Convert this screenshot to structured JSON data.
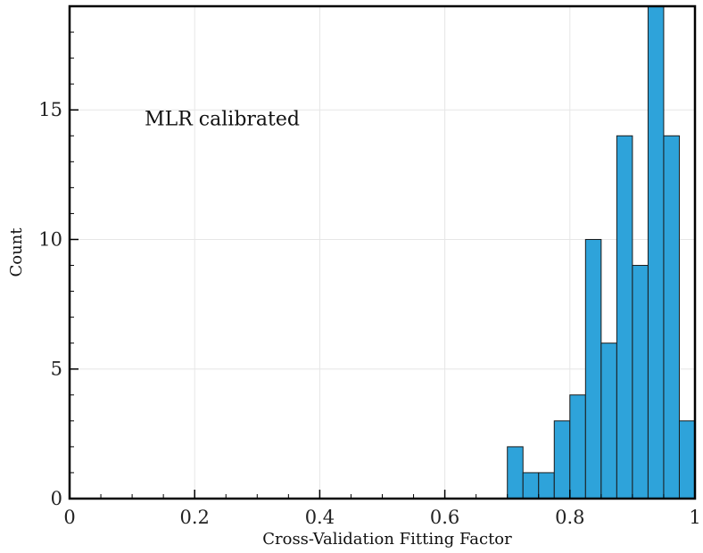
{
  "chart_data": {
    "type": "bar",
    "subtype": "histogram",
    "xlabel": "Cross-Validation Fitting Factor",
    "ylabel": "Count",
    "xlim": [
      0,
      1
    ],
    "ylim": [
      0,
      19
    ],
    "bin_width": 0.025,
    "bins": [
      {
        "x0": 0.7,
        "x1": 0.725,
        "count": 2
      },
      {
        "x0": 0.725,
        "x1": 0.75,
        "count": 1
      },
      {
        "x0": 0.75,
        "x1": 0.775,
        "count": 1
      },
      {
        "x0": 0.775,
        "x1": 0.8,
        "count": 3
      },
      {
        "x0": 0.8,
        "x1": 0.825,
        "count": 4
      },
      {
        "x0": 0.825,
        "x1": 0.85,
        "count": 10
      },
      {
        "x0": 0.85,
        "x1": 0.875,
        "count": 6
      },
      {
        "x0": 0.875,
        "x1": 0.9,
        "count": 14
      },
      {
        "x0": 0.9,
        "x1": 0.925,
        "count": 9
      },
      {
        "x0": 0.925,
        "x1": 0.95,
        "count": 19
      },
      {
        "x0": 0.95,
        "x1": 0.975,
        "count": 14
      },
      {
        "x0": 0.975,
        "x1": 1.0,
        "count": 3
      }
    ],
    "x_ticks": [
      {
        "value": 0,
        "label": "0"
      },
      {
        "value": 0.2,
        "label": "0.2"
      },
      {
        "value": 0.4,
        "label": "0.4"
      },
      {
        "value": 0.6,
        "label": "0.6"
      },
      {
        "value": 0.8,
        "label": "0.8"
      },
      {
        "value": 1,
        "label": "1"
      }
    ],
    "y_ticks": [
      {
        "value": 0,
        "label": "0"
      },
      {
        "value": 5,
        "label": "5"
      },
      {
        "value": 10,
        "label": "10"
      },
      {
        "value": 15,
        "label": "15"
      }
    ],
    "annotations": [
      {
        "text": "MLR calibrated",
        "x": 0.12,
        "y": 14.4
      }
    ],
    "grid": true,
    "bar_color": "#2ea3da",
    "edge_color": "#1a1a1a"
  }
}
